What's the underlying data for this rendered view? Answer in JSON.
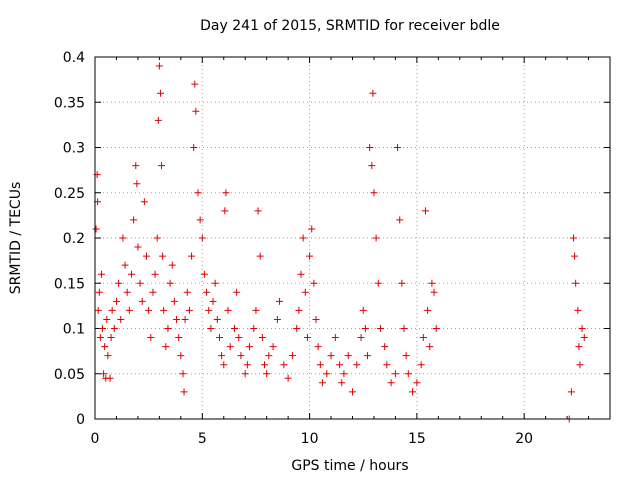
{
  "chart_data": {
    "type": "scatter",
    "title": "Day 241 of 2015, SRMTID for receiver bdle",
    "xlabel": "GPS time / hours",
    "ylabel": "SRMTID / TECUs",
    "xlim": [
      0,
      24
    ],
    "ylim": [
      0,
      0.4
    ],
    "x_ticks": [
      0,
      5,
      10,
      15,
      20
    ],
    "x_tick_labels": [
      "0",
      "5",
      "10",
      "15",
      "20"
    ],
    "y_ticks": [
      0,
      0.05,
      0.1,
      0.15,
      0.2,
      0.25,
      0.3,
      0.35,
      0.4
    ],
    "y_tick_labels": [
      "0",
      "0.05",
      "0.1",
      "0.15",
      "0.2",
      "0.25",
      "0.3",
      "0.35",
      "0.4"
    ],
    "grid": true,
    "marker": "plus",
    "color": "#e00000",
    "series": [
      {
        "name": "SRMTID",
        "points": [
          [
            0.05,
            0.21
          ],
          [
            0.1,
            0.27
          ],
          [
            0.12,
            0.24
          ],
          [
            0.15,
            0.12
          ],
          [
            0.2,
            0.14
          ],
          [
            0.25,
            0.09
          ],
          [
            0.3,
            0.16
          ],
          [
            0.35,
            0.1
          ],
          [
            0.4,
            0.05
          ],
          [
            0.45,
            0.08
          ],
          [
            0.5,
            0.045
          ],
          [
            0.55,
            0.11
          ],
          [
            0.6,
            0.07
          ],
          [
            0.7,
            0.045
          ],
          [
            0.75,
            0.09
          ],
          [
            0.8,
            0.12
          ],
          [
            0.9,
            0.1
          ],
          [
            1.0,
            0.13
          ],
          [
            1.1,
            0.15
          ],
          [
            1.2,
            0.11
          ],
          [
            1.3,
            0.2
          ],
          [
            1.4,
            0.17
          ],
          [
            1.5,
            0.14
          ],
          [
            1.6,
            0.12
          ],
          [
            1.7,
            0.16
          ],
          [
            1.8,
            0.22
          ],
          [
            1.9,
            0.28
          ],
          [
            1.95,
            0.26
          ],
          [
            2.0,
            0.19
          ],
          [
            2.1,
            0.15
          ],
          [
            2.2,
            0.13
          ],
          [
            2.3,
            0.24
          ],
          [
            2.4,
            0.18
          ],
          [
            2.5,
            0.12
          ],
          [
            2.6,
            0.09
          ],
          [
            2.7,
            0.14
          ],
          [
            2.8,
            0.16
          ],
          [
            2.9,
            0.2
          ],
          [
            2.95,
            0.33
          ],
          [
            3.0,
            0.39
          ],
          [
            3.05,
            0.36
          ],
          [
            3.1,
            0.28
          ],
          [
            3.15,
            0.18
          ],
          [
            3.2,
            0.12
          ],
          [
            3.3,
            0.08
          ],
          [
            3.4,
            0.1
          ],
          [
            3.5,
            0.15
          ],
          [
            3.6,
            0.17
          ],
          [
            3.7,
            0.13
          ],
          [
            3.8,
            0.11
          ],
          [
            3.9,
            0.09
          ],
          [
            4.0,
            0.07
          ],
          [
            4.1,
            0.05
          ],
          [
            4.15,
            0.03
          ],
          [
            4.2,
            0.11
          ],
          [
            4.3,
            0.14
          ],
          [
            4.4,
            0.12
          ],
          [
            4.5,
            0.18
          ],
          [
            4.6,
            0.3
          ],
          [
            4.65,
            0.37
          ],
          [
            4.7,
            0.34
          ],
          [
            4.8,
            0.25
          ],
          [
            4.9,
            0.22
          ],
          [
            5.0,
            0.2
          ],
          [
            5.1,
            0.16
          ],
          [
            5.2,
            0.14
          ],
          [
            5.3,
            0.12
          ],
          [
            5.4,
            0.1
          ],
          [
            5.5,
            0.13
          ],
          [
            5.6,
            0.15
          ],
          [
            5.7,
            0.11
          ],
          [
            5.8,
            0.09
          ],
          [
            5.9,
            0.07
          ],
          [
            6.0,
            0.06
          ],
          [
            6.05,
            0.23
          ],
          [
            6.1,
            0.25
          ],
          [
            6.2,
            0.12
          ],
          [
            6.3,
            0.08
          ],
          [
            6.5,
            0.1
          ],
          [
            6.6,
            0.14
          ],
          [
            6.7,
            0.09
          ],
          [
            6.8,
            0.07
          ],
          [
            7.0,
            0.05
          ],
          [
            7.1,
            0.06
          ],
          [
            7.2,
            0.08
          ],
          [
            7.4,
            0.1
          ],
          [
            7.5,
            0.12
          ],
          [
            7.6,
            0.23
          ],
          [
            7.7,
            0.18
          ],
          [
            7.8,
            0.09
          ],
          [
            7.9,
            0.06
          ],
          [
            8.0,
            0.05
          ],
          [
            8.1,
            0.07
          ],
          [
            8.3,
            0.08
          ],
          [
            8.5,
            0.11
          ],
          [
            8.6,
            0.13
          ],
          [
            8.8,
            0.06
          ],
          [
            9.0,
            0.045
          ],
          [
            9.2,
            0.07
          ],
          [
            9.4,
            0.1
          ],
          [
            9.5,
            0.12
          ],
          [
            9.6,
            0.16
          ],
          [
            9.7,
            0.2
          ],
          [
            9.8,
            0.14
          ],
          [
            9.9,
            0.09
          ],
          [
            10.0,
            0.18
          ],
          [
            10.1,
            0.21
          ],
          [
            10.2,
            0.15
          ],
          [
            10.3,
            0.11
          ],
          [
            10.4,
            0.08
          ],
          [
            10.5,
            0.06
          ],
          [
            10.6,
            0.04
          ],
          [
            10.8,
            0.05
          ],
          [
            11.0,
            0.07
          ],
          [
            11.2,
            0.09
          ],
          [
            11.4,
            0.06
          ],
          [
            11.5,
            0.04
          ],
          [
            11.6,
            0.05
          ],
          [
            11.8,
            0.07
          ],
          [
            12.0,
            0.03
          ],
          [
            12.2,
            0.06
          ],
          [
            12.4,
            0.09
          ],
          [
            12.5,
            0.12
          ],
          [
            12.6,
            0.1
          ],
          [
            12.7,
            0.07
          ],
          [
            12.8,
            0.3
          ],
          [
            12.9,
            0.28
          ],
          [
            12.95,
            0.36
          ],
          [
            13.0,
            0.25
          ],
          [
            13.1,
            0.2
          ],
          [
            13.2,
            0.15
          ],
          [
            13.3,
            0.1
          ],
          [
            13.5,
            0.08
          ],
          [
            13.6,
            0.06
          ],
          [
            13.8,
            0.04
          ],
          [
            14.0,
            0.05
          ],
          [
            14.1,
            0.3
          ],
          [
            14.2,
            0.22
          ],
          [
            14.3,
            0.15
          ],
          [
            14.4,
            0.1
          ],
          [
            14.5,
            0.07
          ],
          [
            14.6,
            0.05
          ],
          [
            14.8,
            0.03
          ],
          [
            15.0,
            0.04
          ],
          [
            15.2,
            0.06
          ],
          [
            15.3,
            0.09
          ],
          [
            15.4,
            0.23
          ],
          [
            15.5,
            0.12
          ],
          [
            15.6,
            0.08
          ],
          [
            15.7,
            0.15
          ],
          [
            15.8,
            0.14
          ],
          [
            15.9,
            0.1
          ],
          [
            22.1,
            0.0
          ],
          [
            22.2,
            0.03
          ],
          [
            22.3,
            0.2
          ],
          [
            22.35,
            0.18
          ],
          [
            22.4,
            0.15
          ],
          [
            22.5,
            0.12
          ],
          [
            22.55,
            0.08
          ],
          [
            22.6,
            0.06
          ],
          [
            22.7,
            0.1
          ],
          [
            22.8,
            0.09
          ]
        ]
      }
    ]
  }
}
